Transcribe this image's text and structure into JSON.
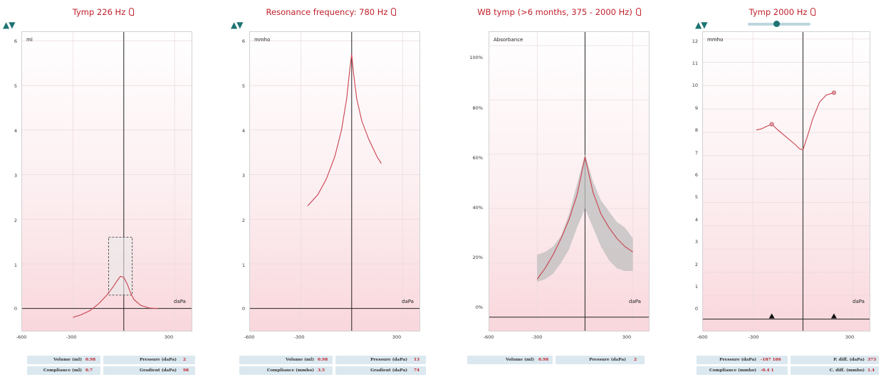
{
  "colors": {
    "curve": "#c9424f",
    "title": "#c0202a",
    "accent": "#1e7373",
    "axis": "#222222",
    "band": "#bfbfbf"
  },
  "icons": {
    "arrow_up": "▲",
    "arrow_down": "▼",
    "ear": "ear-icon"
  },
  "x_axis": {
    "unit": "daPa",
    "ticks": [
      "-600",
      "-300",
      "300"
    ]
  },
  "panels": [
    {
      "title": "Tymp 226 Hz",
      "unit": "ml",
      "y_ticks": [
        "6",
        "5",
        "4",
        "3",
        "2",
        "1",
        "0"
      ],
      "measures": [
        {
          "label": "Volume (ml)",
          "value": "0.98"
        },
        {
          "label": "Pressure (daPa)",
          "value": "2"
        },
        {
          "label": "Compliance (ml)",
          "value": "0.7"
        },
        {
          "label": "Gradient (daPa)",
          "value": "98"
        }
      ]
    },
    {
      "title": "Resonance frequency: 780 Hz",
      "unit": "mmho",
      "y_ticks": [
        "6",
        "5",
        "4",
        "3",
        "2",
        "1",
        "0"
      ],
      "measures": [
        {
          "label": "Volume (ml)",
          "value": "0.98"
        },
        {
          "label": "Pressure (daPa)",
          "value": "13"
        },
        {
          "label": "Compliance (mmho)",
          "value": "3.5"
        },
        {
          "label": "Gradient (daPa)",
          "value": "74"
        }
      ]
    },
    {
      "title": "WB tymp (>6 months, 375 - 2000 Hz)",
      "unit": "Absorbance",
      "y_ticks": [
        "100%",
        "80%",
        "60%",
        "40%",
        "20%",
        "0%"
      ],
      "measures": [
        {
          "label": "Volume (ml)",
          "value": "0.98"
        },
        {
          "label": "Pressure (daPa)",
          "value": "2"
        }
      ]
    },
    {
      "title": "Tymp 2000 Hz",
      "unit": "mmho",
      "y_ticks": [
        "12",
        "11",
        "10",
        "9",
        "8",
        "7",
        "6",
        "5",
        "4",
        "3",
        "2",
        "1",
        "0"
      ],
      "measures": [
        {
          "label": "Pressure (daPa)",
          "value": "-187  186"
        },
        {
          "label": "P. diff. (daPa)",
          "value": "373"
        },
        {
          "label": "Compliance (mmho)",
          "value": "-0.4   1"
        },
        {
          "label": "C. diff. (mmho)",
          "value": "1.4"
        }
      ]
    }
  ],
  "chart_data": [
    {
      "type": "line",
      "title": "Tymp 226 Hz",
      "ylabel": "ml",
      "xlabel": "daPa",
      "xlim": [
        -600,
        400
      ],
      "ylim": [
        -0.5,
        6.2
      ],
      "series": [
        {
          "x": [
            -300,
            -250,
            -200,
            -150,
            -100,
            -60,
            -40,
            -20,
            0,
            20,
            40,
            60,
            100,
            150,
            200
          ],
          "y": [
            -0.2,
            -0.14,
            -0.05,
            0.1,
            0.3,
            0.5,
            0.62,
            0.72,
            0.7,
            0.55,
            0.35,
            0.2,
            0.07,
            0.01,
            0.0
          ]
        }
      ],
      "box": {
        "x": [
          -90,
          50
        ],
        "y": [
          0.3,
          1.6
        ]
      }
    },
    {
      "type": "line",
      "title": "Resonance frequency: 780 Hz",
      "ylabel": "mmho",
      "xlabel": "daPa",
      "xlim": [
        -600,
        400
      ],
      "ylim": [
        -0.5,
        6.2
      ],
      "series": [
        {
          "x": [
            -260,
            -200,
            -150,
            -100,
            -60,
            -30,
            -10,
            0,
            10,
            30,
            60,
            100,
            150,
            175
          ],
          "y": [
            2.3,
            2.55,
            2.9,
            3.4,
            4.0,
            4.7,
            5.4,
            5.7,
            5.3,
            4.7,
            4.2,
            3.8,
            3.4,
            3.25
          ]
        }
      ]
    },
    {
      "type": "area",
      "title": "WB tymp (>6 months, 375 - 2000 Hz)",
      "ylabel": "Absorbance",
      "xlabel": "daPa",
      "xlim": [
        -600,
        400
      ],
      "ylim": [
        -0.05,
        1.05
      ],
      "series": [
        {
          "x": [
            -300,
            -250,
            -200,
            -150,
            -100,
            -50,
            0,
            50,
            100,
            150,
            200,
            250,
            300
          ],
          "y": [
            0.14,
            0.18,
            0.23,
            0.29,
            0.36,
            0.45,
            0.59,
            0.46,
            0.38,
            0.33,
            0.29,
            0.26,
            0.24
          ]
        }
      ],
      "band": {
        "x": [
          -300,
          -250,
          -200,
          -150,
          -100,
          -50,
          0,
          50,
          100,
          150,
          200,
          250,
          300
        ],
        "upper": [
          0.23,
          0.24,
          0.26,
          0.3,
          0.38,
          0.49,
          0.6,
          0.5,
          0.43,
          0.39,
          0.35,
          0.33,
          0.29
        ],
        "lower": [
          0.13,
          0.14,
          0.16,
          0.2,
          0.25,
          0.33,
          0.4,
          0.33,
          0.26,
          0.21,
          0.18,
          0.17,
          0.17
        ]
      }
    },
    {
      "type": "line",
      "title": "Tymp 2000 Hz",
      "ylabel": "mmho",
      "xlabel": "daPa",
      "xlim": [
        -600,
        400
      ],
      "ylim": [
        -0.5,
        12.3
      ],
      "series": [
        {
          "x": [
            -280,
            -250,
            -220,
            -187,
            -150,
            -100,
            -50,
            -20,
            0,
            30,
            60,
            100,
            140,
            186
          ],
          "y": [
            8.1,
            8.15,
            8.25,
            8.35,
            8.1,
            7.8,
            7.5,
            7.3,
            7.25,
            7.9,
            8.6,
            9.3,
            9.6,
            9.7
          ]
        }
      ],
      "points": [
        {
          "x": -187,
          "y": 8.35
        },
        {
          "x": 186,
          "y": 9.7
        }
      ],
      "markers": [
        {
          "x": -187,
          "y": 0.2
        },
        {
          "x": 186,
          "y": 0.2
        }
      ]
    }
  ]
}
